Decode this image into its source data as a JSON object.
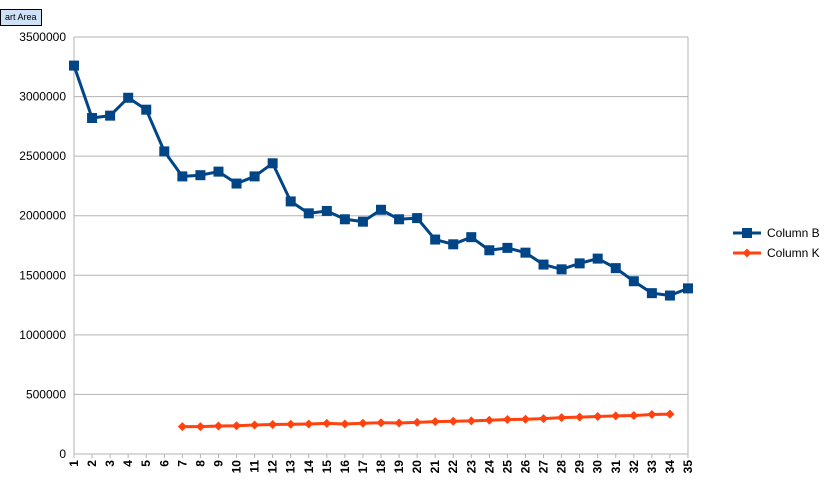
{
  "tooltip": "art Area",
  "chart_data": {
    "type": "line",
    "title": "",
    "xlabel": "",
    "ylabel": "",
    "ylim": [
      0,
      3500000
    ],
    "yticks": [
      0,
      500000,
      1000000,
      1500000,
      2000000,
      2500000,
      3000000,
      3500000
    ],
    "ytick_labels": [
      "0",
      "500000",
      "1000000",
      "1500000",
      "2000000",
      "2500000",
      "3000000",
      "3500000"
    ],
    "grid": "horizontal",
    "legend_position": "right",
    "categories": [
      "1",
      "2",
      "3",
      "4",
      "5",
      "6",
      "7",
      "8",
      "9",
      "10",
      "11",
      "12",
      "13",
      "14",
      "15",
      "16",
      "17",
      "18",
      "19",
      "20",
      "21",
      "22",
      "23",
      "24",
      "25",
      "26",
      "27",
      "28",
      "29",
      "30",
      "31",
      "32",
      "33",
      "34",
      "35"
    ],
    "series": [
      {
        "name": "Column B",
        "color": "#004586",
        "marker": "square",
        "values": [
          3260000,
          2820000,
          2840000,
          2990000,
          2890000,
          2540000,
          2330000,
          2340000,
          2370000,
          2270000,
          2330000,
          2440000,
          2120000,
          2020000,
          2040000,
          1970000,
          1950000,
          2050000,
          1970000,
          1980000,
          1800000,
          1760000,
          1820000,
          1710000,
          1730000,
          1690000,
          1590000,
          1550000,
          1600000,
          1640000,
          1560000,
          1450000,
          1350000,
          1330000,
          1390000
        ]
      },
      {
        "name": "Column K",
        "color": "#ff420e",
        "marker": "diamond",
        "values": [
          null,
          null,
          null,
          null,
          null,
          null,
          230000,
          230000,
          235000,
          237000,
          243000,
          248000,
          250000,
          252000,
          257000,
          252000,
          258000,
          262000,
          260000,
          265000,
          272000,
          275000,
          278000,
          283000,
          290000,
          292000,
          297000,
          305000,
          310000,
          315000,
          320000,
          323000,
          332000,
          335000,
          null
        ]
      }
    ]
  }
}
